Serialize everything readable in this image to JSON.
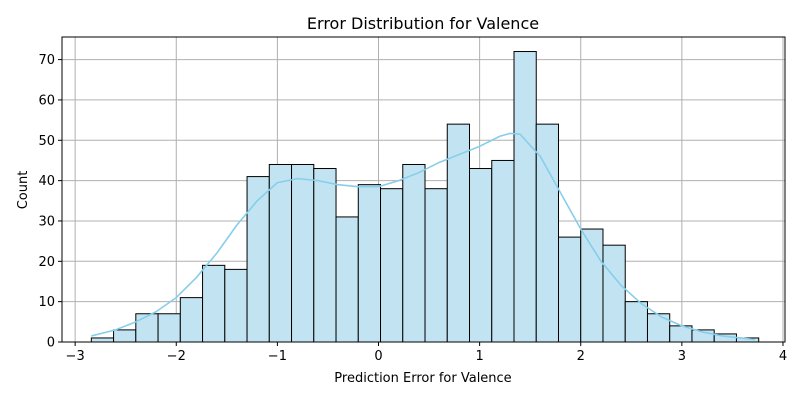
{
  "chart_data": {
    "type": "bar",
    "subtype": "histogram",
    "title": "Error Distribution for Valence",
    "xlabel": "Prediction Error for Valence",
    "ylabel": "Count",
    "xlim": [
      -3.13,
      4.02
    ],
    "ylim": [
      0,
      75.6
    ],
    "x_ticks": [
      -3,
      -2,
      -1,
      0,
      1,
      2,
      3,
      4
    ],
    "x_tick_labels": [
      "−3",
      "−2",
      "−1",
      "0",
      "1",
      "2",
      "3",
      "4"
    ],
    "y_ticks": [
      0,
      10,
      20,
      30,
      40,
      50,
      60,
      70
    ],
    "y_tick_labels": [
      "0",
      "10",
      "20",
      "30",
      "40",
      "50",
      "60",
      "70"
    ],
    "grid": true,
    "bin_start": -2.84,
    "bin_width": 0.22,
    "counts": [
      1,
      3,
      7,
      7,
      11,
      19,
      18,
      41,
      44,
      44,
      43,
      31,
      39,
      38,
      44,
      38,
      54,
      43,
      45,
      72,
      54,
      26,
      28,
      24,
      10,
      7,
      4,
      3,
      2,
      1
    ],
    "kde": {
      "x": [
        -2.84,
        -2.6,
        -2.4,
        -2.2,
        -2.0,
        -1.8,
        -1.6,
        -1.4,
        -1.2,
        -1.0,
        -0.8,
        -0.6,
        -0.4,
        -0.2,
        0.0,
        0.2,
        0.4,
        0.6,
        0.8,
        1.0,
        1.2,
        1.3,
        1.4,
        1.6,
        1.8,
        2.0,
        2.2,
        2.4,
        2.6,
        2.8,
        3.0,
        3.2,
        3.4,
        3.72
      ],
      "y": [
        1.5,
        3,
        5,
        7.5,
        11,
        16,
        22,
        29,
        35,
        39.5,
        40.5,
        40,
        39,
        38.5,
        38.5,
        40,
        42,
        44.5,
        46.5,
        48.5,
        51,
        51.7,
        51.5,
        46,
        37,
        28,
        20,
        14,
        9.5,
        6.2,
        4,
        2.5,
        1.5,
        0.6
      ]
    },
    "colors": {
      "bar_fill": "#c2e4f2",
      "bar_edge": "#000000",
      "kde_line": "#87ceeb",
      "grid": "#b0b0b0"
    }
  }
}
